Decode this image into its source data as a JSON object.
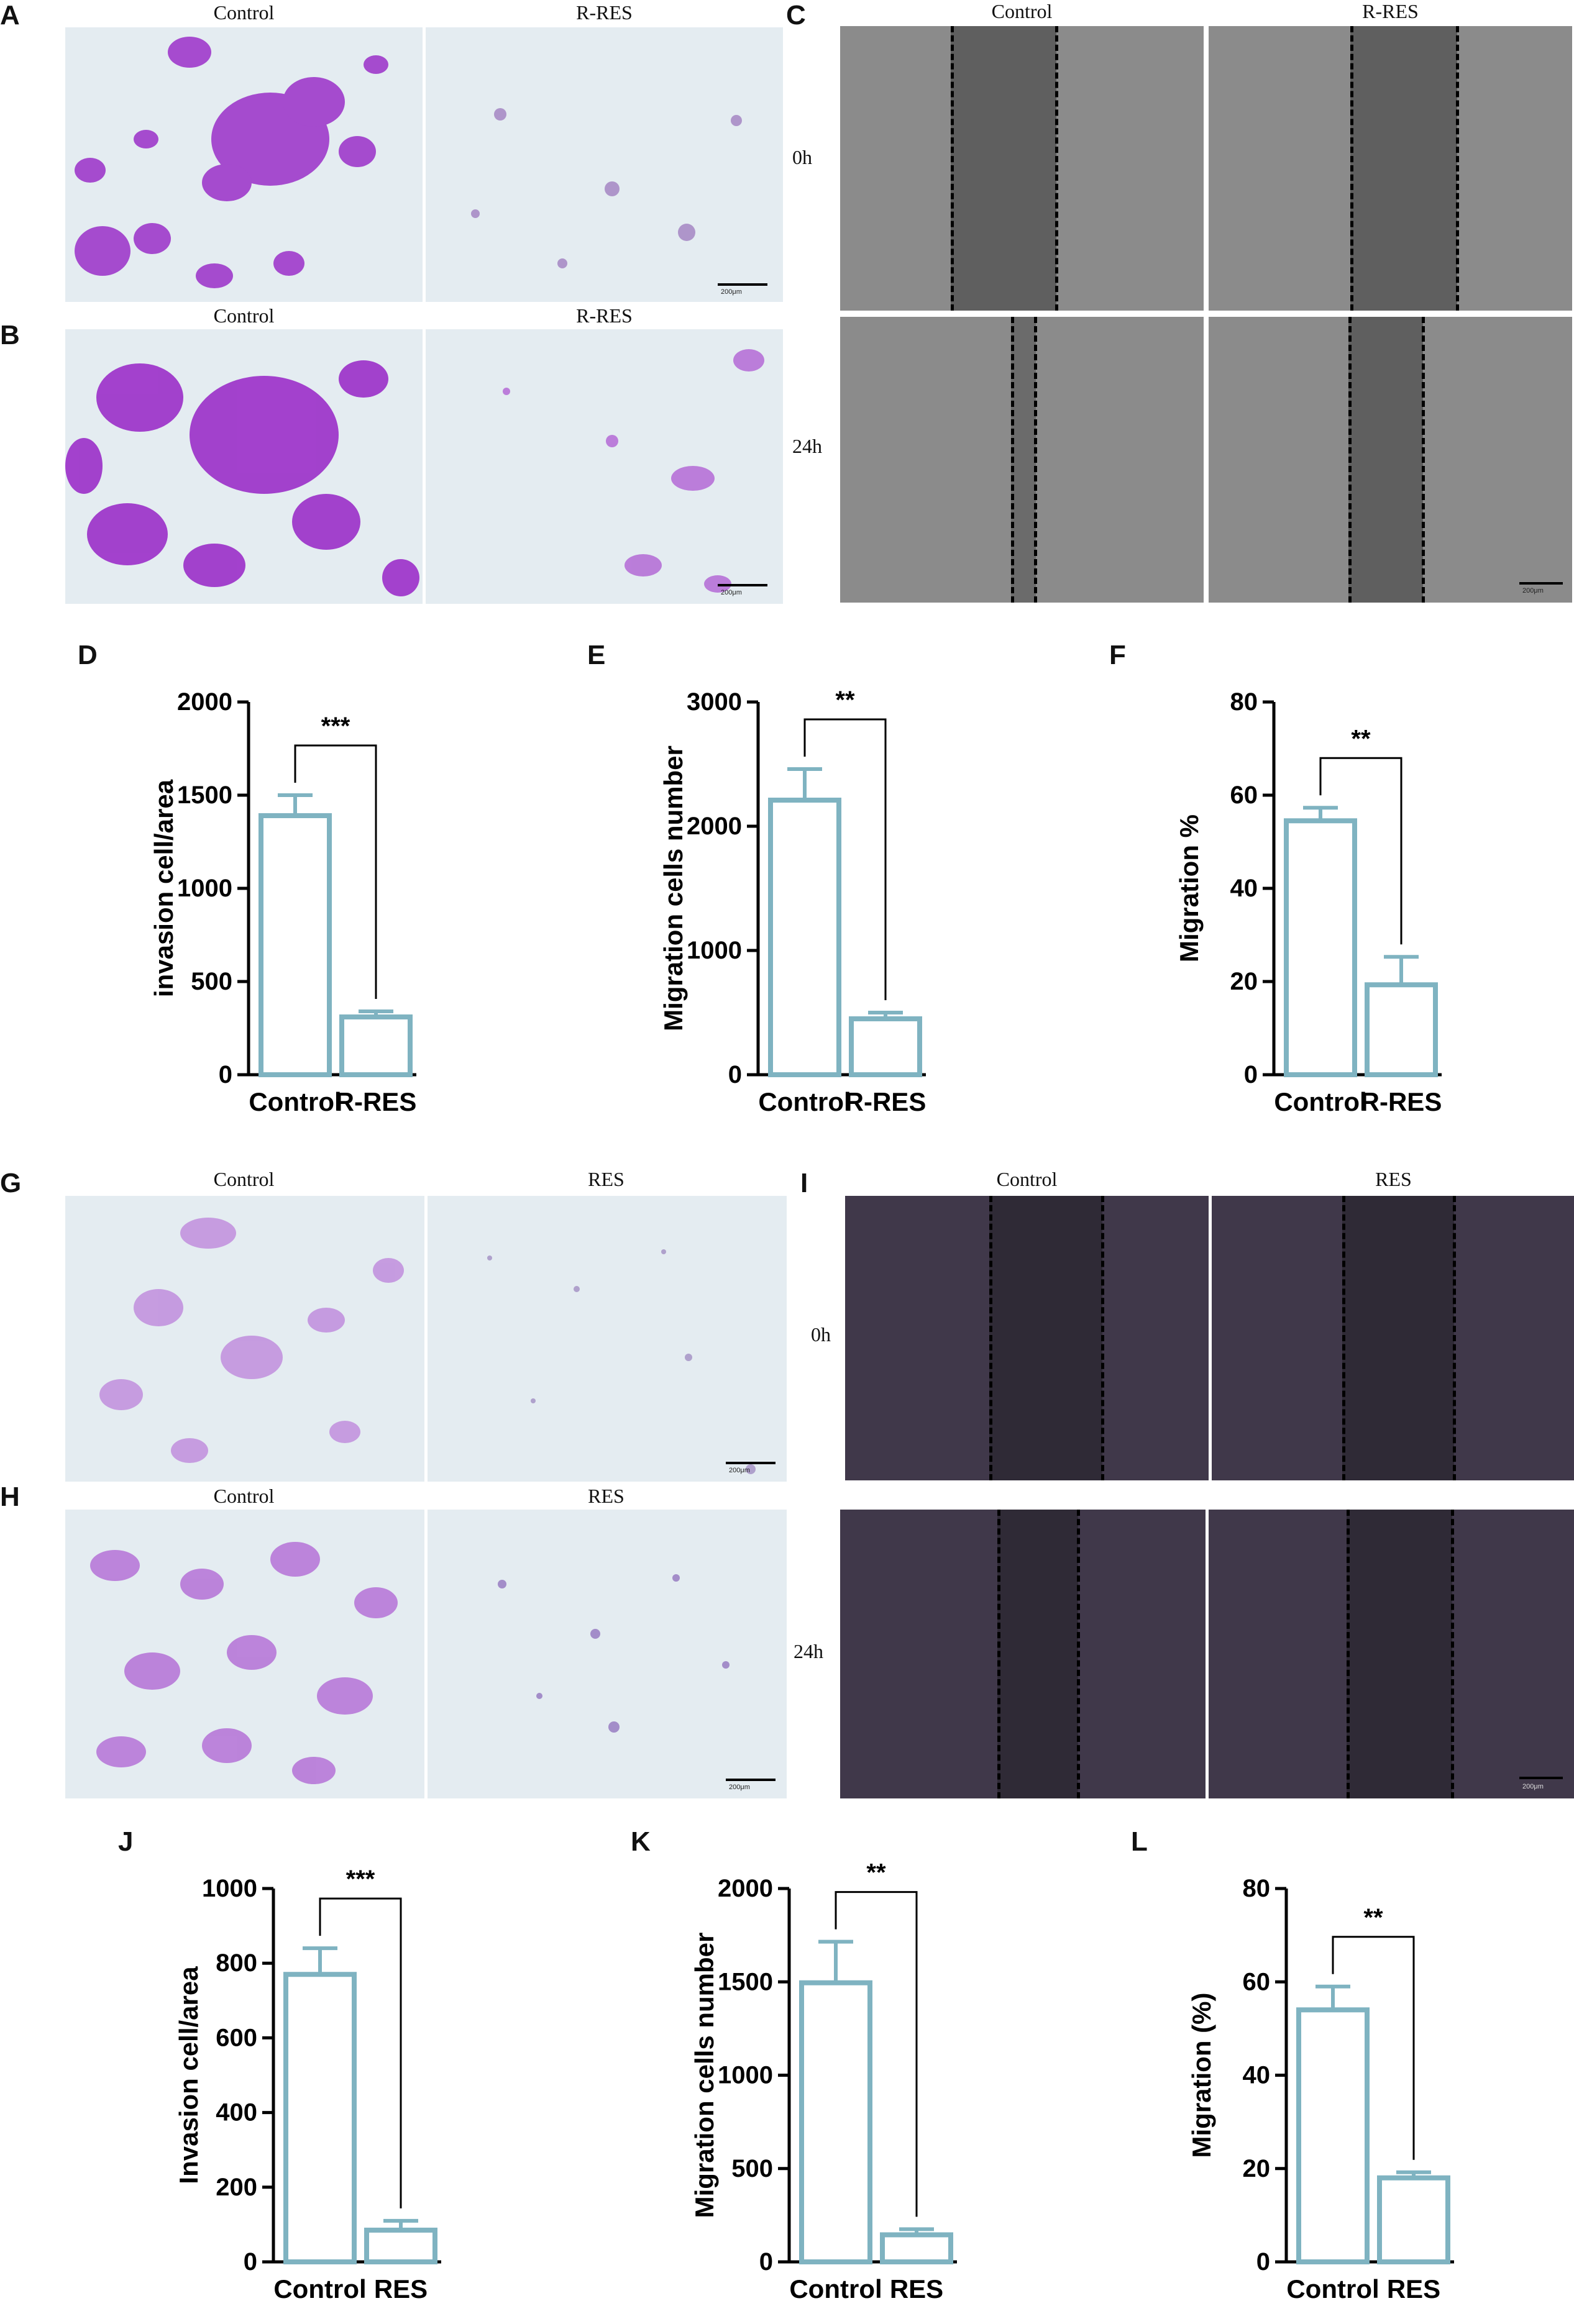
{
  "panels": {
    "A": {
      "letter": "A",
      "left_title": "Control",
      "right_title": "R-RES",
      "scale": "200μm"
    },
    "B": {
      "letter": "B",
      "left_title": "Control",
      "right_title": "R-RES",
      "scale": "200μm"
    },
    "C": {
      "letter": "C",
      "left_title": "Control",
      "right_title": "R-RES",
      "row1": "0h",
      "row2": "24h",
      "scale": "200μm"
    },
    "G": {
      "letter": "G",
      "left_title": "Control",
      "right_title": "RES",
      "scale": "200μm"
    },
    "H": {
      "letter": "H",
      "left_title": "Control",
      "right_title": "RES",
      "scale": "200μm"
    },
    "I": {
      "letter": "I",
      "left_title": "Control",
      "right_title": "RES",
      "row1": "0h",
      "row2": "24h",
      "scale": "200μm"
    }
  },
  "colors": {
    "bar": "#7fb3c1",
    "axis": "#000000",
    "stain": "#9b2fc9",
    "scratch_gap": "#5f5f5f",
    "scratch_gap_dark": "#2f2a36"
  },
  "chart_data": [
    {
      "letter": "D",
      "type": "bar",
      "categories": [
        "Control",
        "R-RES"
      ],
      "values": [
        1390,
        310
      ],
      "errors": [
        110,
        30
      ],
      "ylabel": "invasion cell/area",
      "ylim": [
        0,
        2000
      ],
      "yticks": [
        0,
        500,
        1000,
        1500,
        2000
      ],
      "sig": "***"
    },
    {
      "letter": "E",
      "type": "bar",
      "categories": [
        "Control",
        "R-RES"
      ],
      "values": [
        2210,
        450
      ],
      "errors": [
        250,
        50
      ],
      "ylabel": "Migration cells number",
      "ylim": [
        0,
        3000
      ],
      "yticks": [
        0,
        1000,
        2000,
        3000
      ],
      "sig": "**"
    },
    {
      "letter": "F",
      "type": "bar",
      "categories": [
        "Control",
        "R-RES"
      ],
      "values": [
        54.5,
        19.3
      ],
      "errors": [
        2.8,
        6.0
      ],
      "ylabel": "Migration %",
      "ylim": [
        0,
        80
      ],
      "yticks": [
        0,
        20,
        40,
        60,
        80
      ],
      "sig": "**"
    },
    {
      "letter": "J",
      "type": "bar",
      "categories": [
        "Control",
        "RES"
      ],
      "values": [
        770,
        85
      ],
      "errors": [
        70,
        25
      ],
      "ylabel": "Invasion cell/area",
      "ylim": [
        0,
        1000
      ],
      "yticks": [
        0,
        200,
        400,
        600,
        800,
        1000
      ],
      "sig": "***"
    },
    {
      "letter": "K",
      "type": "bar",
      "categories": [
        "Control",
        "RES"
      ],
      "values": [
        1495,
        145
      ],
      "errors": [
        220,
        30
      ],
      "ylabel": "Migration cells number",
      "ylim": [
        0,
        2000
      ],
      "yticks": [
        0,
        500,
        1000,
        1500,
        2000
      ],
      "sig": "**"
    },
    {
      "letter": "L",
      "type": "bar",
      "categories": [
        "Control",
        "RES"
      ],
      "values": [
        54,
        18
      ],
      "errors": [
        5,
        1.2
      ],
      "ylabel": "Migration (%)",
      "ylim": [
        0,
        80
      ],
      "yticks": [
        0,
        20,
        40,
        60,
        80
      ],
      "sig": "**"
    }
  ]
}
